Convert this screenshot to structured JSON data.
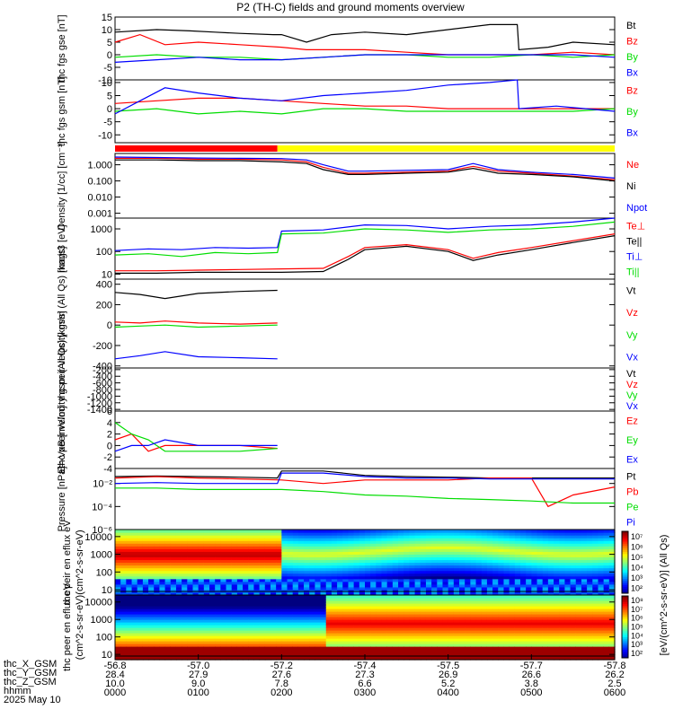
{
  "title": "P2 (TH-C) fields and ground moments overview",
  "date_label": "2025 May 10",
  "colors": {
    "black": "#000000",
    "red": "#ff0000",
    "green": "#00dd00",
    "blue": "#0000ff",
    "yellow": "#ffff00"
  },
  "chart_data": [
    {
      "type": "line",
      "panel": "fgs_gse",
      "ylabel": "thc fgs gse [nT]",
      "ylim": [
        -10,
        15
      ],
      "yticks": [
        -10,
        -5,
        0,
        5,
        10,
        15
      ],
      "yticklabels": [
        "-10",
        "-5",
        "0",
        "5",
        "10",
        "15"
      ],
      "legend": [
        "Bt",
        "Bz",
        "By",
        "Bx"
      ],
      "legend_colors": [
        "#000000",
        "#ff0000",
        "#00dd00",
        "#0000ff"
      ],
      "series": [
        {
          "name": "Bt",
          "x": [
            0,
            0.5,
            0.9,
            1.2,
            1.5,
            1.9,
            2.0,
            2.3,
            2.6,
            3.0,
            3.5,
            4.0,
            4.5,
            4.83,
            4.85,
            5.2,
            5.5,
            6.0
          ],
          "y": [
            9,
            10,
            9.5,
            9,
            8.5,
            8,
            8,
            5,
            8,
            9,
            8,
            10,
            12,
            12,
            2,
            3,
            5,
            4
          ]
        },
        {
          "name": "Bz",
          "x": [
            0,
            0.3,
            0.6,
            1.0,
            1.5,
            2.0,
            2.3,
            3.0,
            3.5,
            4.0,
            4.5,
            5.0,
            5.5,
            6.0
          ],
          "y": [
            5,
            8,
            4,
            5,
            4,
            3,
            2,
            2,
            1,
            0,
            0,
            0,
            1,
            0
          ]
        },
        {
          "name": "By",
          "x": [
            0,
            0.5,
            1.0,
            1.5,
            2.0,
            2.5,
            3.0,
            3.5,
            4.0,
            4.5,
            5.0,
            5.5,
            6.0
          ],
          "y": [
            -1,
            0,
            -1,
            -1,
            -2,
            -1,
            0,
            0,
            -1,
            -1,
            0,
            -1,
            0
          ]
        },
        {
          "name": "Bx",
          "x": [
            0,
            0.5,
            1.0,
            1.5,
            2.0,
            2.5,
            3.0,
            3.5,
            4.0,
            4.5,
            5.0,
            5.5,
            6.0
          ],
          "y": [
            -3,
            -2,
            -1,
            -2,
            -2,
            -1,
            0,
            0,
            0,
            0,
            0,
            0,
            -1
          ]
        }
      ]
    },
    {
      "type": "line",
      "panel": "fgs_gsm",
      "ylabel": "thc fgs gsm [nT]",
      "ylim": [
        -13,
        11
      ],
      "yticks": [
        -10,
        -5,
        0,
        5,
        10
      ],
      "yticklabels": [
        "-10",
        "-5",
        "0",
        "5",
        "10"
      ],
      "legend": [
        "Bz",
        "By",
        "Bx"
      ],
      "legend_colors": [
        "#ff0000",
        "#00dd00",
        "#0000ff"
      ],
      "series": [
        {
          "name": "Bz",
          "x": [
            0,
            0.5,
            1.0,
            1.5,
            2.0,
            2.5,
            3.0,
            3.5,
            4.0,
            4.5,
            5.0,
            5.5,
            6.0
          ],
          "y": [
            2,
            3,
            4,
            4,
            3,
            2,
            1,
            1,
            0,
            0,
            0,
            0,
            0
          ]
        },
        {
          "name": "By",
          "x": [
            0,
            0.5,
            1.0,
            1.5,
            2.0,
            2.5,
            3.0,
            3.5,
            4.0,
            4.5,
            5.0,
            5.5,
            6.0
          ],
          "y": [
            -1,
            0,
            -2,
            -1,
            -2,
            0,
            0,
            -1,
            -1,
            -1,
            -1,
            -1,
            0
          ]
        },
        {
          "name": "Bx",
          "x": [
            0,
            0.3,
            0.6,
            1.0,
            1.5,
            2.0,
            2.5,
            3.0,
            3.5,
            4.0,
            4.5,
            4.83,
            4.85,
            5.3,
            6.0
          ],
          "y": [
            -2,
            3,
            8,
            6,
            4,
            3,
            5,
            6,
            7,
            9,
            10,
            11,
            0,
            1,
            -1
          ]
        }
      ]
    },
    {
      "type": "line",
      "panel": "mode_bar",
      "segments": [
        {
          "x0": 0,
          "x1": 1.95,
          "color": "#ff0000"
        },
        {
          "x0": 1.95,
          "x1": 6.0,
          "color": "#ffff00"
        }
      ]
    },
    {
      "type": "line",
      "panel": "density",
      "ylabel": "Density [1/cc] [cm⁻³]",
      "yscale": "log",
      "ylim": [
        0.0005,
        5
      ],
      "yticks": [
        0.001,
        0.01,
        0.1,
        1
      ],
      "yticklabels": [
        "0.001",
        "0.010",
        "0.100",
        "1.000"
      ],
      "legend": [
        "Ne",
        "Ni",
        "Npot"
      ],
      "legend_colors": [
        "#ff0000",
        "#000000",
        "#0000ff"
      ],
      "series": [
        {
          "name": "Ne",
          "x": [
            0,
            0.5,
            1.0,
            1.5,
            2.0,
            2.3,
            2.5,
            2.8,
            3.0,
            3.5,
            4.0,
            4.3,
            4.6,
            5.0,
            5.5,
            6.0
          ],
          "y": [
            2.5,
            2.5,
            2.2,
            2.2,
            2.0,
            1.5,
            0.7,
            0.3,
            0.3,
            0.35,
            0.4,
            0.8,
            0.4,
            0.3,
            0.2,
            0.12
          ]
        },
        {
          "name": "Ni",
          "x": [
            0,
            0.5,
            1.0,
            1.5,
            2.0,
            2.3,
            2.5,
            2.8,
            3.0,
            3.5,
            4.0,
            4.3,
            4.6,
            5.0,
            5.5,
            6.0
          ],
          "y": [
            2.0,
            2.0,
            1.8,
            1.8,
            1.5,
            1.2,
            0.5,
            0.25,
            0.25,
            0.3,
            0.35,
            0.6,
            0.3,
            0.25,
            0.18,
            0.1
          ]
        },
        {
          "name": "Npot",
          "x": [
            0,
            0.5,
            1.0,
            1.5,
            2.0,
            2.3,
            2.5,
            2.8,
            3.0,
            3.5,
            4.0,
            4.3,
            4.6,
            5.0,
            5.5,
            6.0
          ],
          "y": [
            3.0,
            2.8,
            2.6,
            2.5,
            2.4,
            2.0,
            1.0,
            0.4,
            0.4,
            0.45,
            0.5,
            1.2,
            0.5,
            0.35,
            0.25,
            0.15
          ]
        }
      ]
    },
    {
      "type": "line",
      "panel": "temperature",
      "ylabel": "magt3 [eV]",
      "yscale": "log",
      "ylim": [
        6,
        3000
      ],
      "yticks": [
        10,
        100,
        1000
      ],
      "yticklabels": [
        "10",
        "100",
        "1000"
      ],
      "legend": [
        "Te⊥",
        "Te||",
        "Ti⊥",
        "Ti||"
      ],
      "legend_colors": [
        "#ff0000",
        "#000000",
        "#0000ff",
        "#00dd00"
      ],
      "series": [
        {
          "name": "Te⊥",
          "x": [
            0,
            0.5,
            1.0,
            1.5,
            2.0,
            2.5,
            2.8,
            3.0,
            3.5,
            4.0,
            4.3,
            4.6,
            5.0,
            5.5,
            6.0
          ],
          "y": [
            14,
            14,
            15,
            16,
            17,
            18,
            60,
            150,
            200,
            120,
            50,
            90,
            150,
            300,
            600
          ]
        },
        {
          "name": "Te||",
          "x": [
            0,
            0.5,
            1.0,
            1.5,
            2.0,
            2.5,
            2.8,
            3.0,
            3.5,
            4.0,
            4.3,
            4.6,
            5.0,
            5.5,
            6.0
          ],
          "y": [
            11,
            11,
            12,
            12,
            12,
            13,
            45,
            120,
            170,
            100,
            40,
            70,
            120,
            250,
            500
          ]
        },
        {
          "name": "Ti⊥",
          "x": [
            0,
            0.4,
            0.8,
            1.2,
            1.6,
            1.95,
            2.0,
            2.5,
            3.0,
            3.5,
            4.0,
            4.5,
            5.0,
            5.5,
            6.0
          ],
          "y": [
            110,
            130,
            120,
            150,
            140,
            150,
            800,
            900,
            1500,
            1400,
            1000,
            1300,
            1500,
            2000,
            3000
          ]
        },
        {
          "name": "Ti||",
          "x": [
            0,
            0.4,
            0.8,
            1.2,
            1.6,
            1.95,
            2.0,
            2.5,
            3.0,
            3.5,
            4.0,
            4.5,
            5.0,
            5.5,
            6.0
          ],
          "y": [
            70,
            80,
            60,
            90,
            80,
            90,
            600,
            650,
            1000,
            900,
            700,
            900,
            1000,
            1300,
            2000
          ]
        }
      ]
    },
    {
      "type": "line",
      "panel": "peir_velocity",
      "ylabel": "thc peir velocity gsm (All Qs) [km/s]",
      "ylim": [
        -420,
        450
      ],
      "yticks": [
        -400,
        -200,
        0,
        200,
        400
      ],
      "yticklabels": [
        "-400",
        "-200",
        "0",
        "200",
        "400"
      ],
      "legend": [
        "Vt",
        "Vz",
        "Vy",
        "Vx"
      ],
      "legend_colors": [
        "#000000",
        "#ff0000",
        "#00dd00",
        "#0000ff"
      ],
      "series": [
        {
          "name": "Vt",
          "x": [
            0,
            0.3,
            0.6,
            1.0,
            1.5,
            1.95
          ],
          "y": [
            320,
            300,
            260,
            310,
            330,
            340
          ]
        },
        {
          "name": "Vz",
          "x": [
            0,
            0.3,
            0.6,
            1.0,
            1.5,
            1.95
          ],
          "y": [
            30,
            20,
            40,
            20,
            10,
            20
          ]
        },
        {
          "name": "Vy",
          "x": [
            0,
            0.3,
            0.6,
            1.0,
            1.5,
            1.95
          ],
          "y": [
            -20,
            -10,
            0,
            -20,
            -10,
            0
          ]
        },
        {
          "name": "Vx",
          "x": [
            0,
            0.3,
            0.6,
            1.0,
            1.5,
            1.95
          ],
          "y": [
            -330,
            -300,
            -260,
            -310,
            -320,
            -330
          ]
        }
      ]
    },
    {
      "type": "line",
      "panel": "peer_velocity",
      "ylabel": "thc peer velocity gsm (All Qs) [km/s]",
      "ylim": [
        -1450,
        -150
      ],
      "yticks": [
        -1400,
        -1200,
        -1000,
        -800,
        -600,
        -400,
        -200
      ],
      "yticklabels": [
        "-1400",
        "-1200",
        "-1000",
        "-800",
        "-600",
        "-400",
        "-200"
      ],
      "legend": [
        "Vt",
        "Vz",
        "Vy",
        "Vx"
      ],
      "legend_colors": [
        "#000000",
        "#ff0000",
        "#00dd00",
        "#0000ff"
      ],
      "series": []
    },
    {
      "type": "line",
      "panel": "efield",
      "ylabel": "E=-VxB [mV/m]",
      "ylim": [
        -4,
        6
      ],
      "yticks": [
        -4,
        -2,
        0,
        2,
        4,
        6
      ],
      "yticklabels": [
        "-4",
        "-2",
        "0",
        "2",
        "4",
        "6"
      ],
      "legend": [
        "Ez",
        "Ey",
        "Ex"
      ],
      "legend_colors": [
        "#ff0000",
        "#00dd00",
        "#0000ff"
      ],
      "series": [
        {
          "name": "Ez",
          "x": [
            0,
            0.2,
            0.4,
            0.6,
            1.0,
            1.5,
            1.95
          ],
          "y": [
            1,
            2,
            -1,
            0,
            0,
            0,
            -0.5
          ]
        },
        {
          "name": "Ey",
          "x": [
            0,
            0.2,
            0.4,
            0.6,
            1.0,
            1.5,
            1.95
          ],
          "y": [
            4,
            2,
            1,
            -1,
            -1,
            -1,
            -0.5
          ]
        },
        {
          "name": "Ex",
          "x": [
            0,
            0.2,
            0.4,
            0.6,
            1.0,
            1.5,
            1.95
          ],
          "y": [
            -1,
            0,
            0,
            1,
            0,
            0,
            0
          ]
        }
      ]
    },
    {
      "type": "line",
      "panel": "pressure",
      "ylabel": "Pressure [nPa]",
      "yscale": "log",
      "ylim": [
        1e-06,
        0.2
      ],
      "yticks": [
        1e-06,
        0.0001,
        0.01
      ],
      "yticklabels": [
        "10⁻⁶",
        "10⁻⁴",
        "10⁻²"
      ],
      "legend": [
        "Pt",
        "Pb",
        "Pe",
        "Pi"
      ],
      "legend_colors": [
        "#000000",
        "#ff0000",
        "#00dd00",
        "#0000ff"
      ],
      "series": [
        {
          "name": "Pt",
          "x": [
            0,
            0.5,
            1.0,
            1.5,
            1.95,
            2.0,
            2.5,
            3.0,
            3.5,
            4.0,
            4.5,
            5.0,
            5.5,
            6.0
          ],
          "y": [
            0.04,
            0.045,
            0.04,
            0.035,
            0.03,
            0.12,
            0.12,
            0.05,
            0.04,
            0.035,
            0.03,
            0.03,
            0.03,
            0.03
          ]
        },
        {
          "name": "Pb",
          "x": [
            0,
            0.5,
            1.0,
            1.5,
            2.0,
            2.5,
            3.0,
            3.5,
            4.0,
            4.5,
            5.0,
            5.2,
            5.5,
            6.0
          ],
          "y": [
            0.03,
            0.04,
            0.03,
            0.025,
            0.02,
            0.01,
            0.02,
            0.02,
            0.02,
            0.03,
            0.03,
            0.0001,
            0.001,
            0.005
          ]
        },
        {
          "name": "Pe",
          "x": [
            0,
            0.5,
            1.0,
            1.5,
            2.0,
            2.5,
            3.0,
            3.5,
            4.0,
            4.5,
            5.0,
            5.5,
            6.0
          ],
          "y": [
            0.004,
            0.004,
            0.003,
            0.003,
            0.003,
            0.002,
            0.001,
            0.0008,
            0.0005,
            0.0004,
            0.0003,
            0.0002,
            0.0002
          ]
        },
        {
          "name": "Pi",
          "x": [
            0,
            0.5,
            1.0,
            1.5,
            1.95,
            2.0,
            2.5,
            3.0,
            3.5,
            4.0,
            4.5,
            5.0,
            5.5,
            6.0
          ],
          "y": [
            0.01,
            0.012,
            0.01,
            0.01,
            0.01,
            0.08,
            0.08,
            0.04,
            0.03,
            0.03,
            0.025,
            0.025,
            0.025,
            0.025
          ]
        }
      ]
    },
    {
      "type": "heatmap",
      "panel": "peir_spec",
      "ylabel": "thc peir en eflux eV",
      "units": "(cm^2-s-sr-eV)",
      "yscale": "log",
      "ylim": [
        5,
        25000
      ],
      "yticks": [
        10,
        100,
        1000,
        10000
      ],
      "yticklabels": [
        "10",
        "100",
        "1000",
        "10000"
      ]
    },
    {
      "type": "heatmap",
      "panel": "peer_spec",
      "ylabel": "thc peer en eflux eV",
      "units": "(cm^2-s-sr-eV)",
      "yscale": "log",
      "ylim": [
        5,
        25000
      ],
      "yticks": [
        10,
        100,
        1000,
        10000
      ],
      "yticklabels": [
        "10",
        "100",
        "1000",
        "10000"
      ]
    }
  ],
  "colorbar": {
    "label": "[eV/(cm^2-s-sr-eV)] (All Qs)",
    "ticks_upper": [
      "10⁷",
      "10⁶",
      "10⁵",
      "10⁴",
      "10³",
      "10²"
    ],
    "ticks_lower": [
      "10⁸",
      "10⁷",
      "10⁶",
      "10⁵",
      "10⁴",
      "10³",
      "10²"
    ]
  },
  "xaxis": {
    "hhmm": [
      "0000",
      "0100",
      "0200",
      "0300",
      "0400",
      "0500",
      "0600"
    ],
    "x_gsm": [
      "-56.8",
      "-57.0",
      "-57.2",
      "-57.4",
      "-57.5",
      "-57.7",
      "-57.8"
    ],
    "y_gsm": [
      "28.4",
      "27.9",
      "27.6",
      "27.3",
      "26.9",
      "26.6",
      "26.2"
    ],
    "z_gsm": [
      "10.0",
      "9.0",
      "7.8",
      "6.6",
      "5.2",
      "3.8",
      "2.5"
    ]
  },
  "row_labels": [
    "thc_X_GSM",
    "thc_Y_GSM",
    "thc_Z_GSM",
    "hhmm"
  ]
}
